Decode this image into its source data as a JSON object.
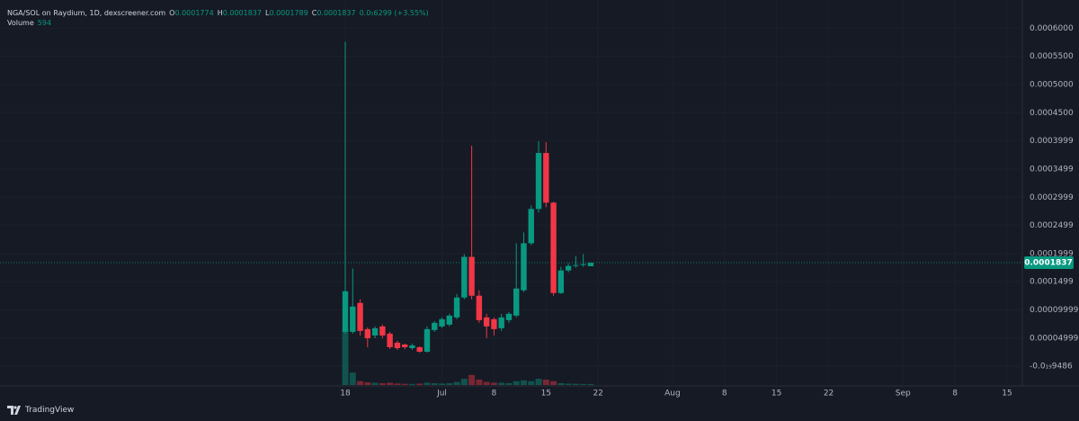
{
  "header": {
    "symbol": "NGA/SOL on Raydium, 1D, dexscreener.com",
    "ohlc": [
      {
        "label": "O",
        "value": "0.0001774"
      },
      {
        "label": "H",
        "value": "0.0001837"
      },
      {
        "label": "L",
        "value": "0.0001789"
      },
      {
        "label": "C",
        "value": "0.0001837"
      }
    ],
    "change": "0.0₅6299 (+3.55%)",
    "volume_label": "Volume",
    "volume_value": "594"
  },
  "branding": "TradingView",
  "chart_data": {
    "type": "candlestick",
    "categories": [
      "18",
      null,
      null,
      null,
      null,
      null,
      null,
      null,
      null,
      null,
      null,
      null,
      null,
      "Jul",
      null,
      null,
      null,
      null,
      null,
      null,
      "8",
      null,
      null,
      null,
      null,
      null,
      null,
      "15",
      null,
      null,
      null,
      null,
      null,
      null,
      "22",
      null,
      null,
      null,
      null,
      null,
      null,
      null,
      null,
      null,
      "Aug",
      null,
      null,
      null,
      null,
      null,
      null,
      "8",
      null,
      null,
      null,
      null,
      null,
      null,
      "15",
      null,
      null,
      null,
      null,
      null,
      null,
      "22",
      null,
      null,
      null,
      null,
      null,
      null,
      null,
      null,
      null,
      "Sep",
      null,
      null,
      null,
      null,
      null,
      null,
      "8",
      null,
      null,
      null,
      null,
      null,
      null,
      "15"
    ],
    "open": [
      6.1e-05,
      6.1e-05,
      0.0001123,
      6.58e-05,
      5.45e-05,
      7.06e-05,
      5.78e-05,
      4.17e-05,
      3.85e-05,
      3.21e-05,
      3.37e-05,
      2.57e-05,
      6.42e-05,
      7.06e-05,
      7.38e-05,
      8.66e-05,
      0.0001219,
      0.0001941,
      0.0001251,
      8.66e-05,
      8.34e-05,
      6.74e-05,
      8.18e-05,
      8.98e-05,
      0.0001347,
      0.0002182,
      0.0002791,
      0.0003785,
      0.0002903,
      0.0001299,
      0.00017,
      0.000178,
      0.0001796,
      0.0001774,
      null,
      null,
      null,
      null,
      null,
      null,
      null,
      null,
      null,
      null,
      null,
      null,
      null,
      null,
      null,
      null,
      null,
      null,
      null,
      null,
      null,
      null,
      null,
      null,
      null,
      null,
      null,
      null,
      null,
      null,
      null,
      null,
      null,
      null,
      null,
      null,
      null,
      null,
      null,
      null,
      null,
      null,
      null,
      null,
      null,
      null,
      null,
      null,
      null,
      null,
      null,
      null,
      null,
      null,
      null,
      null
    ],
    "high": [
      0.0005758,
      0.0001733,
      0.0001187,
      6.9e-05,
      7.06e-05,
      7.38e-05,
      6.1e-05,
      4.49e-05,
      4.01e-05,
      4.01e-05,
      3.53e-05,
      7.06e-05,
      8.02e-05,
      8.66e-05,
      9.3e-05,
      0.0001283,
      0.0001989,
      0.0003914,
      0.0001347,
      9.3e-05,
      8.66e-05,
      9.3e-05,
      9.62e-05,
      0.0002182,
      0.0002374,
      0.0002855,
      0.0003994,
      0.0003978,
      0.0002919,
      0.0001765,
      0.0001829,
      0.0001957,
      0.0001989,
      0.0001837,
      null,
      null,
      null,
      null,
      null,
      null,
      null,
      null,
      null,
      null,
      null,
      null,
      null,
      null,
      null,
      null,
      null,
      null,
      null,
      null,
      null,
      null,
      null,
      null,
      null,
      null,
      null,
      null,
      null,
      null,
      null,
      null,
      null,
      null,
      null,
      null,
      null,
      null,
      null,
      null,
      null,
      null,
      null,
      null,
      null,
      null,
      null,
      null,
      null,
      null,
      null,
      null,
      null,
      null,
      null,
      null
    ],
    "low": [
      5.77e-05,
      5.77e-05,
      5.45e-05,
      3.37e-05,
      4.97e-05,
      4.97e-05,
      3.05e-05,
      2.89e-05,
      3.05e-05,
      2.89e-05,
      2.41e-05,
      2.41e-05,
      6.1e-05,
      6.74e-05,
      7.06e-05,
      8.34e-05,
      0.0001187,
      0.0001187,
      7.7e-05,
      4.97e-05,
      5.45e-05,
      6.26e-05,
      7.7e-05,
      8.66e-05,
      0.0001315,
      0.000215,
      0.0002727,
      0.0002823,
      0.0001251,
      0.0001283,
      0.0001668,
      0.0001748,
      0.0001764,
      0.0001789,
      null,
      null,
      null,
      null,
      null,
      null,
      null,
      null,
      null,
      null,
      null,
      null,
      null,
      null,
      null,
      null,
      null,
      null,
      null,
      null,
      null,
      null,
      null,
      null,
      null,
      null,
      null,
      null,
      null,
      null,
      null,
      null,
      null,
      null,
      null,
      null,
      null,
      null,
      null,
      null,
      null,
      null,
      null,
      null,
      null,
      null,
      null,
      null,
      null,
      null,
      null,
      null,
      null,
      null,
      null,
      null
    ],
    "close": [
      0.0001331,
      0.0001059,
      6.26e-05,
      4.97e-05,
      6.74e-05,
      5.45e-05,
      3.37e-05,
      3.21e-05,
      3.37e-05,
      3.69e-05,
      2.57e-05,
      6.58e-05,
      7.7e-05,
      8.34e-05,
      8.98e-05,
      0.0001219,
      0.0001941,
      0.0001251,
      8.18e-05,
      7.06e-05,
      6.58e-05,
      8.66e-05,
      9.3e-05,
      0.0001379,
      0.0002182,
      0.0002791,
      0.0003785,
      0.0002903,
      0.0001299,
      0.00017,
      0.000178,
      0.0001796,
      0.0001812,
      0.0001837,
      null,
      null,
      null,
      null,
      null,
      null,
      null,
      null,
      null,
      null,
      null,
      null,
      null,
      null,
      null,
      null,
      null,
      null,
      null,
      null,
      null,
      null,
      null,
      null,
      null,
      null,
      null,
      null,
      null,
      null,
      null,
      null,
      null,
      null,
      null,
      null,
      null,
      null,
      null,
      null,
      null,
      null,
      null,
      null,
      null,
      null,
      null,
      null,
      null,
      null,
      null,
      null,
      null,
      null,
      null,
      null
    ],
    "volume": [
      36000,
      8000,
      2500,
      1800,
      1500,
      1200,
      1500,
      1000,
      800,
      700,
      900,
      1500,
      1200,
      1000,
      1200,
      2000,
      4000,
      6500,
      3500,
      2000,
      1500,
      1500,
      1200,
      2500,
      3000,
      2500,
      4000,
      3500,
      2500,
      1200,
      900,
      800,
      700,
      594,
      null,
      null,
      null,
      null,
      null,
      null,
      null,
      null,
      null,
      null,
      null,
      null,
      null,
      null,
      null,
      null,
      null,
      null,
      null,
      null,
      null,
      null,
      null,
      null,
      null,
      null,
      null,
      null,
      null,
      null,
      null,
      null,
      null,
      null,
      null,
      null,
      null,
      null,
      null,
      null,
      null,
      null,
      null,
      null,
      null,
      null,
      null,
      null,
      null,
      null,
      null,
      null,
      null,
      null,
      null,
      null
    ],
    "ylim": [
      -3.5e-05,
      0.00065
    ],
    "yticks": [
      {
        "value": 0.0006,
        "label": "0.0006000"
      },
      {
        "value": 0.00055,
        "label": "0.0005500"
      },
      {
        "value": 0.0005,
        "label": "0.0005000"
      },
      {
        "value": 0.00045,
        "label": "0.0004500"
      },
      {
        "value": 0.0003999,
        "label": "0.0003999"
      },
      {
        "value": 0.0003499,
        "label": "0.0003499"
      },
      {
        "value": 0.0002999,
        "label": "0.0002999"
      },
      {
        "value": 0.0002499,
        "label": "0.0002499"
      },
      {
        "value": 0.0001999,
        "label": "0.0001999"
      },
      {
        "value": 0.0001499,
        "label": "0.0001499"
      },
      {
        "value": 9.999e-05,
        "label": "0.00009999"
      },
      {
        "value": 4.999e-05,
        "label": "0.00004999"
      },
      {
        "value": -9.486e-20,
        "label": "-0.0₁₉9486"
      }
    ],
    "last_price": 0.0001837,
    "up_color": "#089981",
    "down_color": "#f23645",
    "grid": true
  }
}
